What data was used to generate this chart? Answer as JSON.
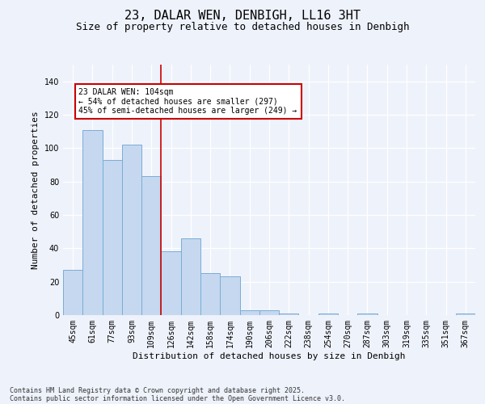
{
  "title1": "23, DALAR WEN, DENBIGH, LL16 3HT",
  "title2": "Size of property relative to detached houses in Denbigh",
  "xlabel": "Distribution of detached houses by size in Denbigh",
  "ylabel": "Number of detached properties",
  "categories": [
    "45sqm",
    "61sqm",
    "77sqm",
    "93sqm",
    "109sqm",
    "126sqm",
    "142sqm",
    "158sqm",
    "174sqm",
    "190sqm",
    "206sqm",
    "222sqm",
    "238sqm",
    "254sqm",
    "270sqm",
    "287sqm",
    "303sqm",
    "319sqm",
    "335sqm",
    "351sqm",
    "367sqm"
  ],
  "values": [
    27,
    111,
    93,
    102,
    83,
    38,
    46,
    25,
    23,
    3,
    3,
    1,
    0,
    1,
    0,
    1,
    0,
    0,
    0,
    0,
    1
  ],
  "bar_color": "#c5d8f0",
  "bar_edgecolor": "#7aadd4",
  "ylim": [
    0,
    150
  ],
  "yticks": [
    0,
    20,
    40,
    60,
    80,
    100,
    120,
    140
  ],
  "vline_x": 4.5,
  "vline_color": "#cc0000",
  "annotation_text": "23 DALAR WEN: 104sqm\n← 54% of detached houses are smaller (297)\n45% of semi-detached houses are larger (249) →",
  "footer1": "Contains HM Land Registry data © Crown copyright and database right 2025.",
  "footer2": "Contains public sector information licensed under the Open Government Licence v3.0.",
  "bg_color": "#eef2fb",
  "plot_bg_color": "#eef2fb",
  "title1_fontsize": 11,
  "title2_fontsize": 9,
  "axis_label_fontsize": 8,
  "tick_fontsize": 7,
  "annotation_fontsize": 7,
  "footer_fontsize": 6
}
